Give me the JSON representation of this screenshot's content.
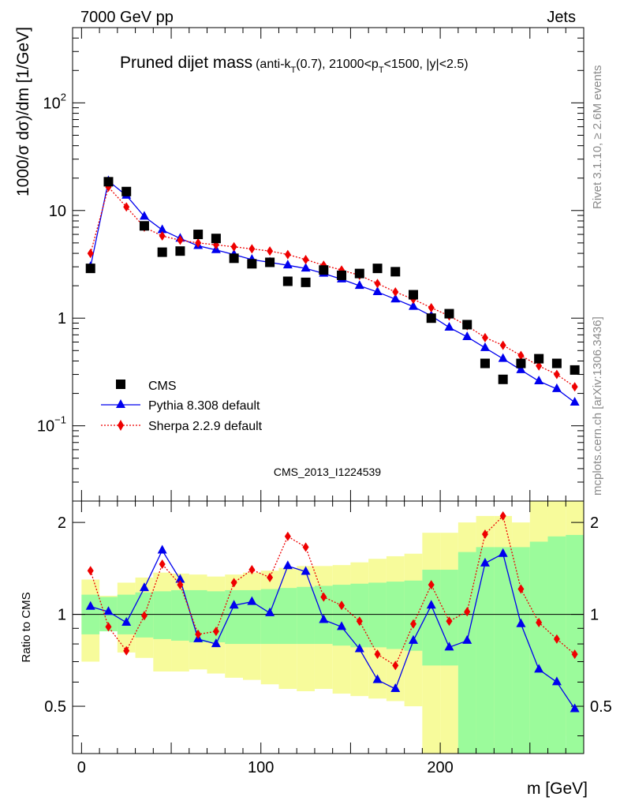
{
  "header": {
    "top_left": "7000 GeV pp",
    "top_right": "Jets",
    "side_top": "Rivet 3.1.10, ≥ 2.6M events",
    "side_bottom": "mcplots.cern.ch [arXiv:1306.3436]"
  },
  "chart_data": [
    {
      "type": "scatter",
      "panel": "main",
      "title": "Pruned dijet mass",
      "title_sub": "(anti-k",
      "title_sub_T": "T",
      "title_sub_mid": "(0.7), 21000<p",
      "title_sub_T2": "T",
      "title_sub_end": "<1500, |y|<2.5)",
      "watermark": "CMS_2013_I1224539",
      "ylabel": "1000/σ dσ)/dm [1/GeV]",
      "yscale": "log",
      "ylim": [
        0.02,
        500
      ],
      "xlim": [
        -5,
        280
      ],
      "x": [
        5,
        15,
        25,
        35,
        45,
        55,
        65,
        75,
        85,
        95,
        105,
        115,
        125,
        135,
        145,
        155,
        165,
        175,
        185,
        195,
        205,
        215,
        225,
        235,
        245,
        255,
        265,
        275
      ],
      "y_ticks": [
        {
          "value": 0.1,
          "base": "10",
          "exp": "−1"
        },
        {
          "value": 1,
          "base": "1",
          "exp": ""
        },
        {
          "value": 10,
          "base": "10",
          "exp": ""
        },
        {
          "value": 100,
          "base": "10",
          "exp": "2"
        }
      ],
      "series": [
        {
          "name": "CMS",
          "style": "data",
          "color": "#000000",
          "values": [
            2.9,
            18.5,
            15.0,
            7.2,
            4.1,
            4.2,
            6.0,
            5.5,
            3.6,
            3.2,
            3.3,
            2.2,
            2.15,
            2.8,
            2.5,
            2.6,
            2.9,
            2.7,
            1.65,
            1.0,
            1.1,
            0.87,
            0.38,
            0.27,
            0.38,
            0.42,
            0.38,
            0.33
          ]
        },
        {
          "name": "Pythia 8.308 default",
          "style": "triangle",
          "color": "#0000ee",
          "values": [
            3.0,
            18.8,
            13.8,
            8.8,
            6.6,
            5.5,
            4.7,
            4.3,
            3.9,
            3.5,
            3.3,
            3.1,
            2.9,
            2.6,
            2.3,
            2.0,
            1.75,
            1.5,
            1.28,
            1.05,
            0.82,
            0.67,
            0.53,
            0.42,
            0.33,
            0.26,
            0.22,
            0.165
          ]
        },
        {
          "name": "Sherpa 2.2.9 default",
          "style": "diamond",
          "color": "#ee0000",
          "values": [
            4.0,
            16.5,
            10.8,
            7.0,
            5.8,
            5.3,
            5.0,
            4.8,
            4.6,
            4.4,
            4.2,
            3.9,
            3.5,
            3.1,
            2.8,
            2.5,
            2.1,
            1.75,
            1.5,
            1.25,
            1.05,
            0.85,
            0.66,
            0.56,
            0.45,
            0.36,
            0.3,
            0.23
          ]
        }
      ],
      "legend_position": "bottom-left"
    },
    {
      "type": "scatter",
      "panel": "ratio",
      "ylabel": "Ratio to CMS",
      "xlabel": "m [GeV]",
      "yscale": "log",
      "ylim": [
        0.35,
        2.35
      ],
      "xlim": [
        -5,
        280
      ],
      "y_ticks": [
        0.5,
        1,
        2
      ],
      "x_ticks": [
        0,
        100,
        200
      ],
      "x": [
        5,
        15,
        25,
        35,
        45,
        55,
        65,
        75,
        85,
        95,
        105,
        115,
        125,
        135,
        145,
        155,
        165,
        175,
        185,
        195,
        205,
        215,
        225,
        235,
        245,
        255,
        265,
        275
      ],
      "bands": {
        "edges": [
          0,
          10,
          20,
          30,
          40,
          50,
          60,
          70,
          80,
          90,
          100,
          110,
          120,
          130,
          140,
          150,
          160,
          170,
          180,
          190,
          200,
          210,
          220,
          230,
          240,
          250,
          260,
          270,
          280
        ],
        "inner": {
          "color": "#9bfb9b",
          "lo": [
            0.86,
            0.88,
            0.86,
            0.84,
            0.83,
            0.82,
            0.81,
            0.81,
            0.8,
            0.8,
            0.8,
            0.8,
            0.8,
            0.8,
            0.79,
            0.78,
            0.78,
            0.77,
            0.76,
            0.68,
            0.68,
            0.35,
            0.35,
            0.35,
            0.35,
            0.35,
            0.35,
            0.35
          ],
          "hi": [
            1.16,
            1.14,
            1.16,
            1.18,
            1.19,
            1.2,
            1.2,
            1.19,
            1.2,
            1.2,
            1.21,
            1.22,
            1.23,
            1.24,
            1.25,
            1.26,
            1.27,
            1.28,
            1.29,
            1.4,
            1.4,
            1.6,
            1.66,
            1.66,
            1.66,
            1.73,
            1.8,
            1.82
          ]
        },
        "outer": {
          "color": "#f7fb9b",
          "lo": [
            0.7,
            0.9,
            0.75,
            0.72,
            0.65,
            0.65,
            0.66,
            0.64,
            0.62,
            0.61,
            0.59,
            0.57,
            0.56,
            0.57,
            0.55,
            0.54,
            0.53,
            0.52,
            0.5,
            0.35,
            0.35,
            0.35,
            0.35,
            0.35,
            0.4,
            0.38,
            0.4,
            0.4
          ],
          "hi": [
            1.3,
            1.15,
            1.27,
            1.32,
            1.37,
            1.36,
            1.35,
            1.33,
            1.35,
            1.37,
            1.39,
            1.42,
            1.44,
            1.44,
            1.45,
            1.48,
            1.52,
            1.55,
            1.58,
            1.85,
            1.85,
            2.0,
            2.1,
            2.1,
            2.0,
            2.35,
            2.35,
            2.35
          ]
        }
      },
      "series": [
        {
          "name": "Pythia 8.308 default",
          "style": "triangle",
          "color": "#0000ee",
          "values": [
            1.06,
            1.02,
            0.94,
            1.22,
            1.62,
            1.3,
            0.83,
            0.8,
            1.07,
            1.1,
            1.01,
            1.44,
            1.38,
            0.96,
            0.91,
            0.77,
            0.61,
            0.57,
            0.82,
            1.07,
            0.78,
            0.82,
            1.47,
            1.58,
            0.93,
            0.66,
            0.6,
            0.49
          ]
        },
        {
          "name": "Sherpa 2.2.9 default",
          "style": "diamond",
          "color": "#ee0000",
          "values": [
            1.39,
            0.91,
            0.76,
            0.99,
            1.46,
            1.25,
            0.86,
            0.88,
            1.27,
            1.4,
            1.32,
            1.8,
            1.66,
            1.14,
            1.07,
            0.95,
            0.74,
            0.68,
            0.93,
            1.25,
            0.95,
            1.02,
            1.83,
            2.1,
            1.21,
            0.94,
            0.83,
            0.74
          ]
        }
      ]
    }
  ]
}
